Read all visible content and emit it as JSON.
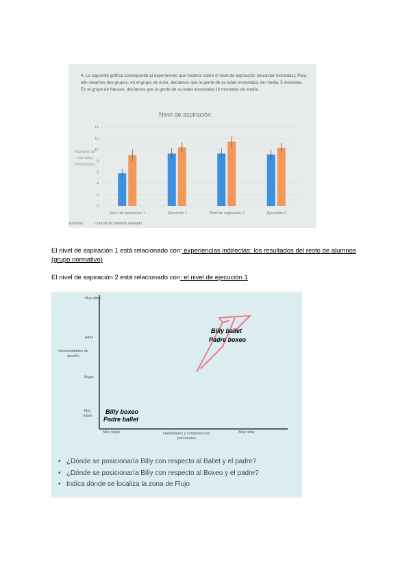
{
  "figure1": {
    "question": "4. La siguiente gráfica corresponde al experimento que hicimos sobre el nivel de aspiración (encestar monedas). Para ello creamos dos grupos: en el grupo de éxito, decíamos que la gente de su edad encestaba, de media, 5 monedas. En el grupo de fracaso, decíamos que la gente de su edad encestaba 16 monedas de media.",
    "chart": {
      "type": "bar",
      "title": "Nivel de aspiración",
      "y_label": "Número de monedas encestadas",
      "categories": [
        "Nivel de aspiración 1",
        "Ejecución 1",
        "Nivel de aspiración 2",
        "Ejecución 2"
      ],
      "series": [
        {
          "color": "#3d8fe0",
          "values": [
            5.8,
            9.3,
            9.3,
            9.1
          ],
          "errors": [
            0.8,
            0.9,
            0.9,
            0.9
          ]
        },
        {
          "color": "#f0995a",
          "values": [
            9,
            10.4,
            11.4,
            10.3
          ],
          "errors": [
            1,
            0.9,
            1,
            0.9
          ]
        }
      ],
      "ylim": [
        0,
        14
      ],
      "yticks": [
        0,
        2,
        4,
        6,
        8,
        10,
        12,
        14
      ]
    },
    "footer": [
      "aciones)",
      "Control de cambios activado"
    ]
  },
  "paragraphs": [
    {
      "text": "El nivel de aspiración 1 está relacionado con:",
      "underlined": " experiencias indirectas: los resultados del resto de alumnos (grupo normativo)"
    },
    {
      "text": "El nivel de aspiración 2 está relacionado con",
      "underlined": ": el nivel de ejecución 1"
    }
  ],
  "figure2": {
    "y_labels": [
      "Muy altos",
      "Altas",
      "Oportunidades de desafío",
      "Bajas",
      "Muy bajas"
    ],
    "x_labels": [
      "Muy bajas",
      "Habilidades y competencias personales",
      "Muy altas"
    ],
    "annotations": [
      "Billy ballet",
      "Padre boxeo",
      "Billy boxeo",
      "Padre ballet"
    ],
    "bullets": [
      "¿Dónde se posicionaría Billy con respecto al Ballet y el padre?",
      "¿Dónde se posicionaría Billy con respecto al Boxeo y el padre?",
      "Indica dónde se localiza la zona de Flujo"
    ]
  }
}
